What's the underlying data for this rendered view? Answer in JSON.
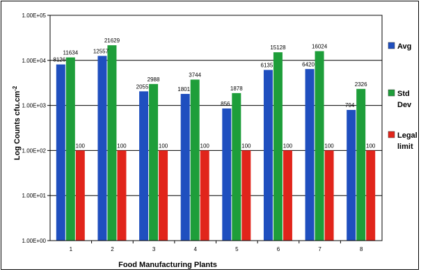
{
  "chart_data": {
    "type": "bar",
    "scale": "log",
    "ylim": [
      1,
      100000
    ],
    "categories": [
      "1",
      "2",
      "3",
      "4",
      "5",
      "6",
      "7",
      "8"
    ],
    "series": [
      {
        "name": "Avg",
        "color": "#1f4fbf",
        "values": [
          8126,
          12557,
          2055,
          1801,
          856,
          6135,
          6420,
          794
        ]
      },
      {
        "name": "Std Dev",
        "color": "#1e9e3a",
        "values": [
          11634,
          21629,
          2988,
          3744,
          1878,
          15128,
          16024,
          2326
        ]
      },
      {
        "name": "Legal limit",
        "color": "#e1251b",
        "values": [
          100,
          100,
          100,
          100,
          100,
          100,
          100,
          100
        ]
      }
    ],
    "data_labels": [
      [
        "8126",
        "12557",
        "2055",
        "1801",
        "856",
        "6135",
        "6420",
        "794"
      ],
      [
        "11634",
        "21629",
        "2988",
        "3744",
        "1878",
        "15128",
        "16024",
        "2326"
      ],
      [
        "100",
        "100",
        "100",
        "100",
        "100",
        "100",
        "100",
        "100"
      ]
    ],
    "y_tick_labels": [
      "1.00E+00",
      "1.00E+01",
      "1.00E+02",
      "1.00E+03",
      "1.00E+04",
      "1.00E+05"
    ],
    "xlabel": "Food Manufacturing  Plants",
    "ylabel": "Log Counts cfu.cm",
    "ylabel_superscript": "-2",
    "legend": {
      "position": "right",
      "entries": [
        {
          "lines": [
            "Avg"
          ]
        },
        {
          "lines": [
            "Std",
            "Dev"
          ]
        },
        {
          "lines": [
            "Legal",
            "limit"
          ]
        }
      ]
    },
    "grid": true
  }
}
